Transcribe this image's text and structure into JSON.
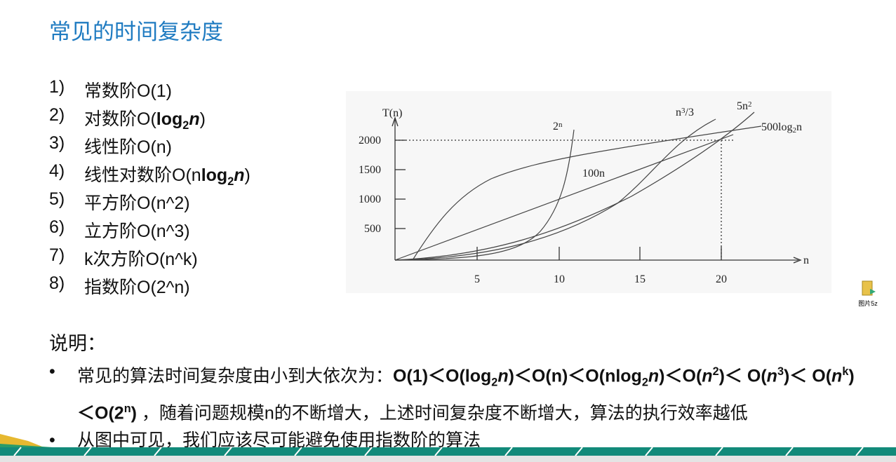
{
  "header": {
    "title": "常见的时间复杂度"
  },
  "list": [
    {
      "num": "1)",
      "runs": [
        {
          "text": "常数阶O(1)"
        }
      ]
    },
    {
      "num": "2)",
      "runs": [
        {
          "text": "对数阶O("
        },
        {
          "text": "log",
          "bold": true
        },
        {
          "text": "2",
          "bold": true,
          "script": "sub"
        },
        {
          "text": "n",
          "bold": true,
          "italic": true
        },
        {
          "text": ")"
        }
      ]
    },
    {
      "num": "3)",
      "runs": [
        {
          "text": "线性阶O(n)"
        }
      ]
    },
    {
      "num": "4)",
      "runs": [
        {
          "text": "线性对数阶O(n"
        },
        {
          "text": "log",
          "bold": true
        },
        {
          "text": "2",
          "bold": true,
          "script": "sub"
        },
        {
          "text": "n",
          "bold": true,
          "italic": true
        },
        {
          "text": ")"
        }
      ]
    },
    {
      "num": "5)",
      "runs": [
        {
          "text": "平方阶O(n^2)"
        }
      ]
    },
    {
      "num": "6)",
      "runs": [
        {
          "text": "立方阶O(n^3)"
        }
      ]
    },
    {
      "num": "7)",
      "runs": [
        {
          "text": "k次方阶O(n^k)"
        }
      ]
    },
    {
      "num": "8)",
      "runs": [
        {
          "text": "指数阶O(2^n)"
        }
      ]
    }
  ],
  "figure": {
    "y_axis_label": "T(n)",
    "x_axis_label": "n",
    "yticks": [
      "2000",
      "1500",
      "1000",
      "500"
    ],
    "xticks": [
      "5",
      "10",
      "15",
      "20"
    ],
    "curve_labels": [
      {
        "runs": [
          {
            "text": "2"
          },
          {
            "text": "n",
            "script": "sup"
          }
        ]
      },
      {
        "runs": [
          {
            "text": "100n"
          }
        ]
      },
      {
        "runs": [
          {
            "text": "n"
          },
          {
            "text": "3",
            "script": "sup"
          },
          {
            "text": "/3"
          }
        ]
      },
      {
        "runs": [
          {
            "text": "5n"
          },
          {
            "text": "2",
            "script": "sup"
          }
        ]
      },
      {
        "runs": [
          {
            "text": "500log"
          },
          {
            "text": "2",
            "script": "sub"
          },
          {
            "text": "n"
          }
        ]
      }
    ]
  },
  "icon": {
    "label": "图片5z"
  },
  "notes": {
    "heading": "说明：",
    "bullets": [
      {
        "runs": [
          {
            "text": "常见的算法时间复杂度由小到大依次为："
          },
          {
            "text": "O(1)＜O(log",
            "bold": true
          },
          {
            "text": "2",
            "bold": true,
            "script": "sub"
          },
          {
            "text": "n",
            "bold": true,
            "italic": true
          },
          {
            "text": ")＜O(n)＜O(nlog",
            "bold": true
          },
          {
            "text": "2",
            "bold": true,
            "script": "sub"
          },
          {
            "text": "n",
            "bold": true,
            "italic": true
          },
          {
            "text": ")＜O(",
            "bold": true
          },
          {
            "text": "n",
            "bold": true,
            "italic": true
          },
          {
            "text": "2",
            "bold": true,
            "script": "sup"
          },
          {
            "text": ")＜ O(",
            "bold": true
          },
          {
            "text": "n",
            "bold": true,
            "italic": true
          },
          {
            "text": "3",
            "bold": true,
            "script": "sup"
          },
          {
            "text": ")＜ O(",
            "bold": true
          },
          {
            "text": "n",
            "bold": true,
            "italic": true
          },
          {
            "text": "k",
            "bold": true,
            "script": "sup"
          },
          {
            "text": ") ＜O(2",
            "bold": true
          },
          {
            "text": "n",
            "bold": true,
            "script": "sup"
          },
          {
            "text": ")",
            "bold": true
          },
          {
            "text": " ，随着问题规模n的不断增大，上述时间复杂度不断增大，算法的执行效率越低"
          }
        ]
      },
      {
        "runs": [
          {
            "text": "从图中可见，我们应该尽可能避免使用指数阶的算法"
          }
        ]
      }
    ]
  }
}
